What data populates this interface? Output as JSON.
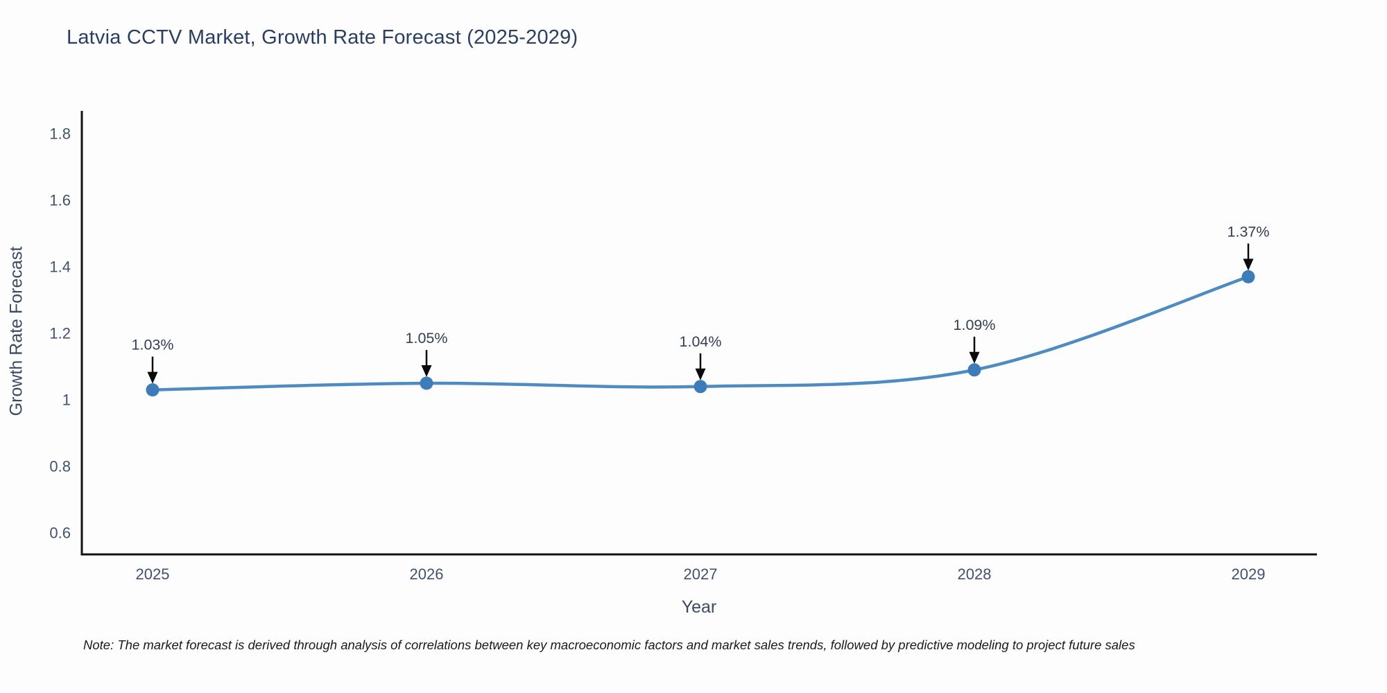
{
  "chart_data": {
    "type": "line",
    "line_shape": "spline",
    "title": "Latvia CCTV Market, Growth Rate Forecast (2025-2029)",
    "xlabel": "Year",
    "ylabel": "Growth Rate Forecast",
    "x": [
      2025,
      2026,
      2027,
      2028,
      2029
    ],
    "categories": [
      "2025",
      "2026",
      "2027",
      "2028",
      "2029"
    ],
    "series": [
      {
        "name": "Growth Rate Forecast",
        "values": [
          1.03,
          1.05,
          1.04,
          1.09,
          1.37
        ]
      }
    ],
    "annotations": [
      "1.03%",
      "1.05%",
      "1.04%",
      "1.09%",
      "1.37%"
    ],
    "yticks": [
      0.6,
      0.8,
      1,
      1.2,
      1.4,
      1.6,
      1.8
    ],
    "ytick_labels": [
      "0.6",
      "0.8",
      "1",
      "1.2",
      "1.4",
      "1.6",
      "1.8"
    ],
    "ylim": [
      0.54,
      1.87
    ],
    "grid": false,
    "legend": "none",
    "note": "Note: The market forecast is derived through analysis of correlations between key macroeconomic factors and market sales trends, followed by predictive modeling to project future sales",
    "colors": {
      "line": "#4e8bc0",
      "marker": "#3c7cb8",
      "axis": "#111111",
      "tick": "#42516d",
      "annotation": "#333f50",
      "arrow": "#0a0a0a",
      "title": "#2a3f5f",
      "axis_title": "#3b4a63",
      "note_text": "#1a1a1a",
      "background": "#fdfdfd"
    }
  }
}
